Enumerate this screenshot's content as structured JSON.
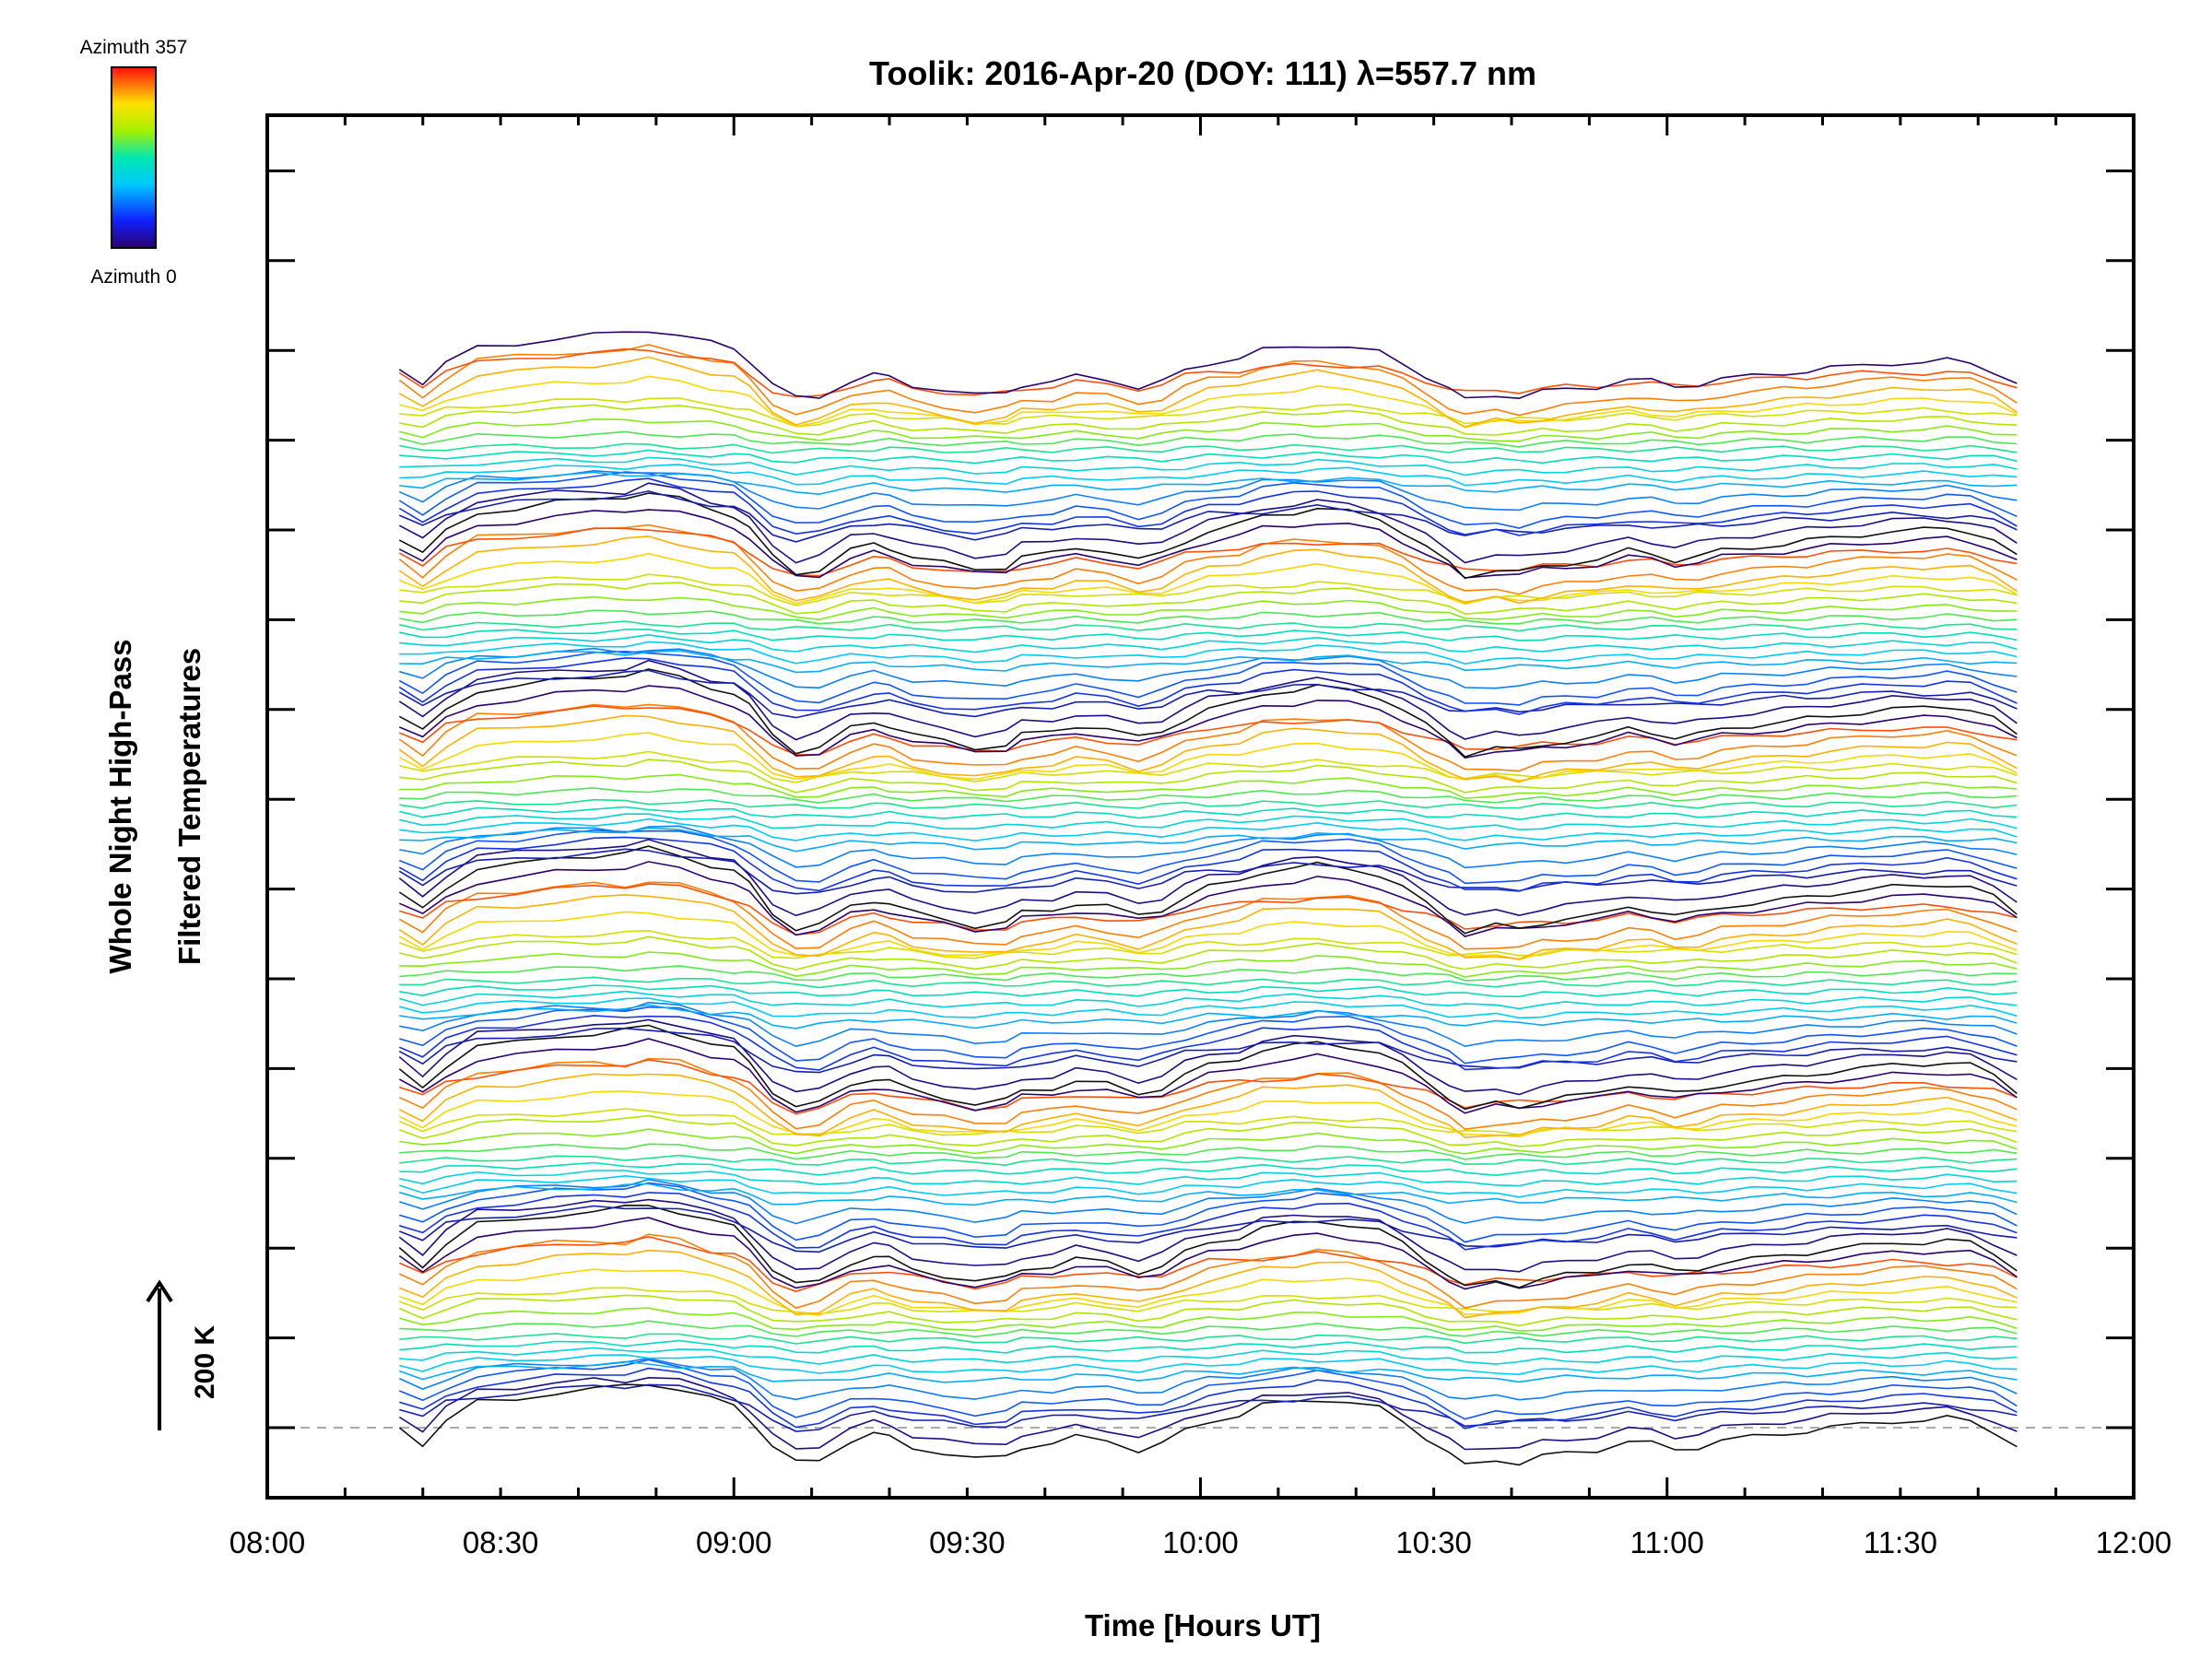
{
  "chart_data": {
    "type": "line",
    "title": "Toolik: 2016-Apr-20 (DOY: 111) λ=557.7 nm",
    "xlabel": "Time [Hours UT]",
    "ylabel_line1": "Whole Night High-Pass",
    "ylabel_line2": "Filtered Temperatures",
    "x_range_hours": [
      8.0,
      12.0
    ],
    "x_ticks": [
      {
        "value": 8.0,
        "label": "08:00"
      },
      {
        "value": 8.5,
        "label": "08:30"
      },
      {
        "value": 9.0,
        "label": "09:00"
      },
      {
        "value": 9.5,
        "label": "09:30"
      },
      {
        "value": 10.0,
        "label": "10:00"
      },
      {
        "value": 10.5,
        "label": "10:30"
      },
      {
        "value": 11.0,
        "label": "11:00"
      },
      {
        "value": 11.5,
        "label": "11:30"
      },
      {
        "value": 12.0,
        "label": "12:00"
      }
    ],
    "data_x_range_hours": [
      8.283,
      11.75
    ],
    "colorbar": {
      "max_label": "Azimuth 357",
      "min_label": "Azimuth 0",
      "colormap": "rainbow"
    },
    "scale_bar_label": "200 K",
    "series_count": 120,
    "series_offset_K": 22,
    "baseline_dashed": true,
    "base_profile": {
      "time_hours": [
        8.283,
        8.333,
        8.383,
        8.45,
        8.533,
        8.617,
        8.7,
        8.767,
        8.817,
        8.883,
        8.95,
        9.0,
        9.033,
        9.083,
        9.133,
        9.183,
        9.25,
        9.3,
        9.333,
        9.383,
        9.45,
        9.517,
        9.583,
        9.617,
        9.683,
        9.733,
        9.8,
        9.867,
        9.917,
        9.967,
        10.017,
        10.083,
        10.133,
        10.2,
        10.25,
        10.317,
        10.383,
        10.433,
        10.483,
        10.533,
        10.567,
        10.633,
        10.683,
        10.733,
        10.783,
        10.85,
        10.917,
        10.967,
        11.017,
        11.067,
        11.117,
        11.183,
        11.25,
        11.3,
        11.35,
        11.417,
        11.483,
        11.55,
        11.6,
        11.65,
        11.7,
        11.75
      ],
      "temperature_K": [
        0,
        -25,
        10,
        40,
        45,
        55,
        60,
        65,
        70,
        60,
        45,
        35,
        15,
        -30,
        -55,
        -50,
        -20,
        -10,
        -15,
        -30,
        -40,
        -50,
        -45,
        -30,
        -25,
        -15,
        -20,
        -35,
        -25,
        -5,
        10,
        20,
        35,
        40,
        45,
        40,
        30,
        10,
        -15,
        -40,
        -60,
        -50,
        -55,
        -45,
        -40,
        -35,
        -20,
        -25,
        -35,
        -30,
        -20,
        -15,
        -10,
        -5,
        0,
        5,
        10,
        12,
        15,
        10,
        -5,
        -30
      ]
    },
    "azimuth_group_profiles": [
      {
        "name": "group-a",
        "temperature_K": [
          5,
          -20,
          15,
          50,
          55,
          62,
          65,
          60,
          75,
          68,
          50,
          40,
          18,
          -25,
          -50,
          -45,
          -15,
          -8,
          -12,
          -28,
          -35,
          -45,
          -40,
          -25,
          -22,
          -12,
          -18,
          -30,
          -22,
          -2,
          12,
          22,
          38,
          44,
          48,
          44,
          32,
          12,
          -12,
          -38,
          -55,
          -48,
          -52,
          -42,
          -38,
          -30,
          -18,
          -22,
          -32,
          -26,
          -16,
          -12,
          -6,
          -2,
          4,
          8,
          14,
          16,
          18,
          12,
          -2,
          -25
        ]
      },
      {
        "name": "group-b",
        "temperature_K": [
          10,
          -15,
          20,
          35,
          40,
          45,
          50,
          55,
          55,
          45,
          30,
          22,
          5,
          -35,
          -50,
          -35,
          -10,
          0,
          -5,
          -20,
          -30,
          -40,
          -35,
          -25,
          -20,
          -10,
          -15,
          -25,
          -15,
          5,
          15,
          15,
          20,
          25,
          28,
          25,
          20,
          5,
          -10,
          -25,
          -35,
          -30,
          -30,
          -25,
          -22,
          -20,
          -10,
          -15,
          -20,
          -15,
          -10,
          -5,
          0,
          2,
          5,
          10,
          12,
          10,
          8,
          5,
          -5,
          -20
        ]
      },
      {
        "name": "group-c",
        "temperature_K": [
          0,
          -10,
          5,
          10,
          20,
          25,
          30,
          28,
          35,
          30,
          25,
          20,
          10,
          -10,
          -20,
          -25,
          -15,
          -10,
          -8,
          -12,
          -15,
          -20,
          -15,
          -10,
          -8,
          -5,
          -8,
          -10,
          -8,
          0,
          5,
          8,
          10,
          12,
          15,
          12,
          10,
          5,
          0,
          -10,
          -15,
          -12,
          -12,
          -10,
          -8,
          -8,
          -5,
          -5,
          -8,
          -6,
          -5,
          -3,
          0,
          0,
          2,
          3,
          5,
          5,
          6,
          5,
          0,
          -8
        ]
      }
    ]
  }
}
